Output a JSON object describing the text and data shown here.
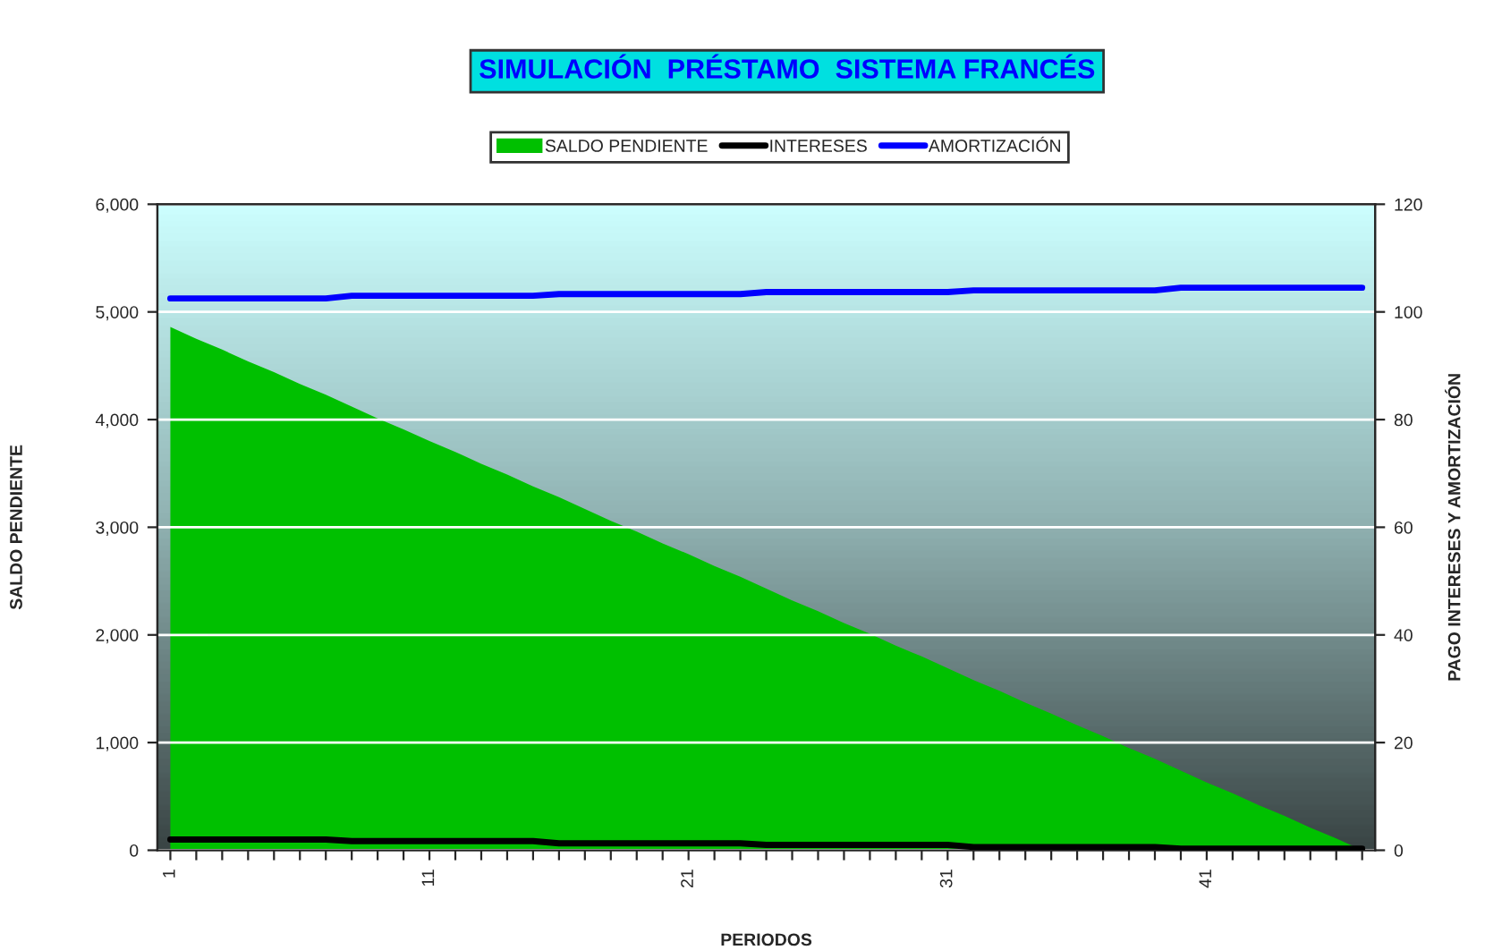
{
  "chart_data": {
    "type": "area",
    "title": "SIMULACIÓN  PRÉSTAMO  SISTEMA FRANCÉS",
    "xlabel": "PERIODOS",
    "ylabel": "SALDO PENDIENTE",
    "y2label": "PAGO INTERESES Y AMORTIZACIÓN",
    "categories": [
      "1",
      null,
      null,
      null,
      null,
      null,
      null,
      null,
      null,
      null,
      "11",
      null,
      null,
      null,
      null,
      null,
      null,
      null,
      null,
      null,
      "21",
      null,
      null,
      null,
      null,
      null,
      null,
      null,
      null,
      null,
      "31",
      null,
      null,
      null,
      null,
      null,
      null,
      null,
      null,
      null,
      "41",
      null,
      null,
      null,
      null,
      null,
      null
    ],
    "series": [
      {
        "name": "SALDO PENDIENTE",
        "color": "#00c000",
        "values": [
          4860,
          4750,
          4650,
          4540,
          4440,
          4330,
          4230,
          4120,
          4010,
          3910,
          3800,
          3700,
          3590,
          3490,
          3380,
          3280,
          3170,
          3060,
          2960,
          2850,
          2750,
          2640,
          2540,
          2430,
          2320,
          2220,
          2110,
          2010,
          1900,
          1800,
          1690,
          1580,
          1480,
          1370,
          1270,
          1160,
          1060,
          950,
          850,
          740,
          630,
          530,
          420,
          320,
          210,
          110,
          0
        ]
      },
      {
        "name": "INTERESES",
        "type": "line",
        "axis": "y2",
        "color": "#000000",
        "values": [
          2,
          2,
          2,
          2,
          2,
          2,
          2,
          1.7,
          1.7,
          1.7,
          1.7,
          1.7,
          1.7,
          1.7,
          1.7,
          1.3,
          1.3,
          1.3,
          1.3,
          1.3,
          1.3,
          1.3,
          1.3,
          1,
          1,
          1,
          1,
          1,
          1,
          1,
          1,
          0.6,
          0.6,
          0.6,
          0.6,
          0.6,
          0.6,
          0.6,
          0.6,
          0.3,
          0.3,
          0.3,
          0.3,
          0.3,
          0.3,
          0.3,
          0.3
        ]
      },
      {
        "name": "AMORTIZACIÓN",
        "type": "line",
        "axis": "y2",
        "color": "#0000ff",
        "values": [
          102.5,
          102.5,
          102.5,
          102.5,
          102.5,
          102.5,
          102.5,
          103,
          103,
          103,
          103,
          103,
          103,
          103,
          103,
          103.3,
          103.3,
          103.3,
          103.3,
          103.3,
          103.3,
          103.3,
          103.3,
          103.7,
          103.7,
          103.7,
          103.7,
          103.7,
          103.7,
          103.7,
          103.7,
          104,
          104,
          104,
          104,
          104,
          104,
          104,
          104,
          104.5,
          104.5,
          104.5,
          104.5,
          104.5,
          104.5,
          104.5,
          104.5
        ]
      }
    ],
    "ylim": [
      0,
      6000
    ],
    "yticks": [
      {
        "value": 0,
        "label": "0"
      },
      {
        "value": 1000,
        "label": "1,000"
      },
      {
        "value": 2000,
        "label": "2,000"
      },
      {
        "value": 3000,
        "label": "3,000"
      },
      {
        "value": 4000,
        "label": "4,000"
      },
      {
        "value": 5000,
        "label": "5,000"
      },
      {
        "value": 6000,
        "label": "6,000"
      }
    ],
    "y2lim": [
      0,
      120
    ],
    "y2ticks": [
      0,
      20,
      40,
      60,
      80,
      100,
      120
    ],
    "grid": "y",
    "legend": "top",
    "line_style": "solid",
    "marker": "none"
  }
}
